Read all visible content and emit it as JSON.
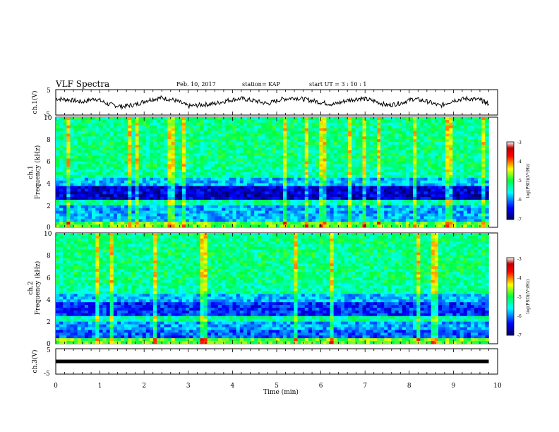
{
  "header": {
    "title": "VLF Spectra",
    "date": "Feb. 10, 2017",
    "station": "station= KAP",
    "start": "start  UT  =   3  : 10 : 1"
  },
  "chart_data": [
    {
      "type": "line",
      "panel": "ch1-voltage",
      "ylabel": "ch.1(V)",
      "ylim": [
        -5,
        5
      ],
      "yticks": [
        "5",
        "-5"
      ],
      "xlim": [
        0,
        10
      ],
      "series": [
        {
          "x": [
            0.0,
            0.3,
            0.6,
            0.9,
            1.2,
            1.5,
            1.8,
            2.1,
            2.4,
            2.7,
            3.0,
            3.3,
            3.6,
            3.9,
            4.2,
            4.5,
            4.8,
            5.1,
            5.4,
            5.7,
            6.0,
            6.3,
            6.6,
            6.9,
            7.2,
            7.5,
            7.8,
            8.1,
            8.4,
            8.7,
            9.0,
            9.3,
            9.6,
            9.8
          ],
          "y": [
            1.5,
            1.0,
            0.2,
            1.5,
            -0.8,
            -1.6,
            -0.9,
            1.0,
            1.8,
            0.8,
            -1.5,
            -1.0,
            -0.5,
            0.8,
            1.5,
            0.6,
            -0.5,
            1.2,
            1.8,
            1.0,
            0.0,
            -0.8,
            0.8,
            1.6,
            0.6,
            -1.2,
            -0.3,
            1.4,
            0.4,
            -1.4,
            0.8,
            1.5,
            1.0,
            -0.6
          ]
        }
      ]
    },
    {
      "type": "heatmap",
      "panel": "ch1-spectrogram",
      "ylabel": "Frequency (kHz)",
      "panel_label": "ch.1",
      "ylim": [
        0,
        10
      ],
      "yticks": [
        "0",
        "2",
        "4",
        "6",
        "8",
        "10"
      ],
      "xlim": [
        0,
        10
      ],
      "colorbar": {
        "label": "log(PSD)(V²/Hz)",
        "range": [
          -7,
          -3
        ],
        "ticks": [
          "-3",
          "-4",
          "-5",
          "-6",
          "-7"
        ]
      }
    },
    {
      "type": "heatmap",
      "panel": "ch2-spectrogram",
      "ylabel": "Frequency (kHz)",
      "panel_label": "ch.2",
      "ylim": [
        0,
        10
      ],
      "yticks": [
        "0",
        "2",
        "4",
        "6",
        "8",
        "10"
      ],
      "xlim": [
        0,
        10
      ],
      "colorbar": {
        "label": "log(PSD)(V²/Hz)",
        "range": [
          -7,
          -3
        ],
        "ticks": [
          "-3",
          "-4",
          "-5",
          "-6",
          "-7"
        ]
      }
    },
    {
      "type": "line",
      "panel": "ch3-voltage",
      "ylabel": "ch.3(V)",
      "ylim": [
        -5,
        5
      ],
      "yticks": [
        "5",
        "-5"
      ],
      "xlim": [
        0,
        10
      ],
      "series": [
        {
          "x": [
            0.0,
            9.8
          ],
          "y": [
            0.0,
            0.0
          ]
        }
      ]
    }
  ],
  "xaxis": {
    "label": "Time  (min)",
    "ticks": [
      "0",
      "1",
      "2",
      "3",
      "4",
      "5",
      "6",
      "7",
      "8",
      "9",
      "10"
    ]
  },
  "colors": {
    "axes": "#000000",
    "colormap": [
      "#000080",
      "#0000ff",
      "#00ffff",
      "#00ff00",
      "#ffff00",
      "#ff0000",
      "#800000"
    ]
  }
}
